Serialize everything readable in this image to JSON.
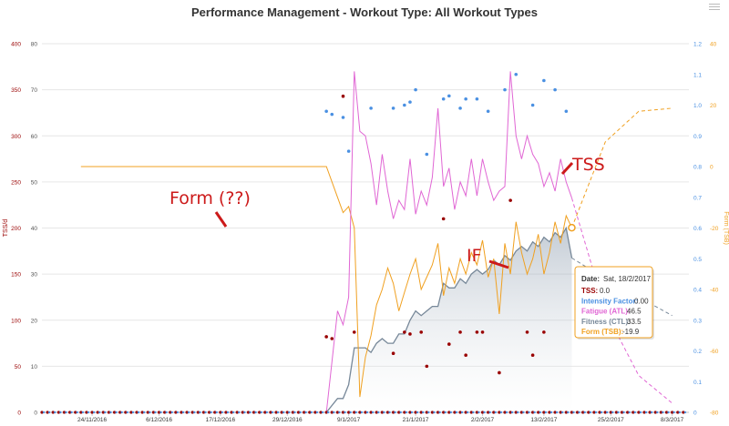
{
  "window": {
    "title": "Performance Management - Workout Type: All Workout Types"
  },
  "colors": {
    "tss": "#990000",
    "if": "#4a90e2",
    "atl": "#e066d4",
    "ctl": "#778899",
    "tsb": "#f0a020",
    "annotation": "#cc1a1a",
    "grid": "#e6e6e6"
  },
  "icons": {
    "menu": "hamburger-menu-icon"
  },
  "chart_data": {
    "type": "line",
    "title": "Performance Management - Workout Type: All Workout Types",
    "x_dates": [
      "2016-11-24",
      "2016-12-06",
      "2016-12-17",
      "2016-12-29",
      "2017-01-09",
      "2017-01-21",
      "2017-02-02",
      "2017-02-13",
      "2017-02-25",
      "2017-03-08"
    ],
    "x_tick_labels": [
      "24/11/2016",
      "6/12/2016",
      "17/12/2016",
      "29/12/2016",
      "9/1/2017",
      "21/1/2017",
      "2/2/2017",
      "13/2/2017",
      "25/2/2017",
      "8/3/2017"
    ],
    "axes": {
      "tss": {
        "label": "TSS/d",
        "ylim": [
          0,
          400
        ],
        "ticks": [
          "0",
          "50",
          "100",
          "150",
          "200",
          "250",
          "300",
          "350",
          "400"
        ]
      },
      "atl_ctl": {
        "label": "",
        "ylim": [
          0,
          80
        ],
        "ticks": [
          "0",
          "10",
          "20",
          "30",
          "40",
          "50",
          "60",
          "70",
          "80"
        ]
      },
      "if": {
        "label": "",
        "ylim": [
          0,
          1.2
        ],
        "ticks": [
          "0",
          "0.1",
          "0.2",
          "0.3",
          "0.4",
          "0.5",
          "0.6",
          "0.7",
          "0.8",
          "0.9",
          "1.0",
          "1.1",
          "1.2"
        ]
      },
      "tsb": {
        "label": "Form (TSB)",
        "ylim": [
          -80,
          40
        ],
        "ticks": [
          "-80",
          "-60",
          "-40",
          "-20",
          "0",
          "20",
          "40"
        ]
      }
    },
    "grid": true,
    "series": [
      {
        "name": "Fitness (CTL)",
        "axis": "atl_ctl",
        "x": [
          "2017-01-05",
          "2017-01-07",
          "2017-01-08",
          "2017-01-09",
          "2017-01-10",
          "2017-01-11",
          "2017-01-12",
          "2017-01-13",
          "2017-01-14",
          "2017-01-15",
          "2017-01-16",
          "2017-01-17",
          "2017-01-18",
          "2017-01-19",
          "2017-01-20",
          "2017-01-21",
          "2017-01-22",
          "2017-01-23",
          "2017-01-24",
          "2017-01-25",
          "2017-01-26",
          "2017-01-27",
          "2017-01-28",
          "2017-01-29",
          "2017-01-30",
          "2017-01-31",
          "2017-02-01",
          "2017-02-02",
          "2017-02-03",
          "2017-02-04",
          "2017-02-05",
          "2017-02-06",
          "2017-02-07",
          "2017-02-08",
          "2017-02-09",
          "2017-02-10",
          "2017-02-11",
          "2017-02-12",
          "2017-02-13",
          "2017-02-14",
          "2017-02-15",
          "2017-02-16",
          "2017-02-17",
          "2017-02-18"
        ],
        "values": [
          0,
          3,
          3,
          6,
          14,
          14,
          14,
          13,
          15,
          16,
          15,
          15,
          17,
          17,
          20,
          22,
          21,
          22,
          23,
          23,
          28,
          27,
          27,
          29,
          28,
          30,
          31,
          30,
          31,
          33,
          32,
          34,
          33,
          35,
          36,
          35,
          37,
          36,
          38,
          37,
          39,
          38,
          40,
          33.5
        ]
      },
      {
        "name": "Fatigue (ATL)",
        "axis": "atl_ctl",
        "x": [
          "2017-01-05",
          "2017-01-07",
          "2017-01-08",
          "2017-01-09",
          "2017-01-10",
          "2017-01-11",
          "2017-01-12",
          "2017-01-13",
          "2017-01-14",
          "2017-01-15",
          "2017-01-16",
          "2017-01-17",
          "2017-01-18",
          "2017-01-19",
          "2017-01-20",
          "2017-01-21",
          "2017-01-22",
          "2017-01-23",
          "2017-01-24",
          "2017-01-25",
          "2017-01-26",
          "2017-01-27",
          "2017-01-28",
          "2017-01-29",
          "2017-01-30",
          "2017-01-31",
          "2017-02-01",
          "2017-02-02",
          "2017-02-03",
          "2017-02-04",
          "2017-02-05",
          "2017-02-06",
          "2017-02-07",
          "2017-02-08",
          "2017-02-09",
          "2017-02-10",
          "2017-02-11",
          "2017-02-12",
          "2017-02-13",
          "2017-02-14",
          "2017-02-15",
          "2017-02-16",
          "2017-02-17",
          "2017-02-18"
        ],
        "values": [
          0,
          22,
          19,
          25,
          74,
          61,
          60,
          54,
          45,
          56,
          48,
          42,
          46,
          44,
          55,
          43,
          48,
          45,
          51,
          66,
          49,
          53,
          44,
          50,
          47,
          55,
          47,
          55,
          50,
          46,
          48,
          49,
          74,
          60,
          55,
          60,
          56,
          54,
          49,
          52,
          48,
          55,
          50,
          46.5
        ]
      },
      {
        "name": "Form (TSB)",
        "axis": "tsb",
        "x": [
          "2016-11-22",
          "2017-01-05",
          "2017-01-07",
          "2017-01-08",
          "2017-01-09",
          "2017-01-10",
          "2017-01-11",
          "2017-01-12",
          "2017-01-13",
          "2017-01-14",
          "2017-01-15",
          "2017-01-16",
          "2017-01-17",
          "2017-01-18",
          "2017-01-19",
          "2017-01-20",
          "2017-01-21",
          "2017-01-22",
          "2017-01-23",
          "2017-01-24",
          "2017-01-25",
          "2017-01-26",
          "2017-01-27",
          "2017-01-28",
          "2017-01-29",
          "2017-01-30",
          "2017-01-31",
          "2017-02-01",
          "2017-02-02",
          "2017-02-03",
          "2017-02-04",
          "2017-02-05",
          "2017-02-06",
          "2017-02-07",
          "2017-02-08",
          "2017-02-09",
          "2017-02-10",
          "2017-02-11",
          "2017-02-12",
          "2017-02-13",
          "2017-02-14",
          "2017-02-15",
          "2017-02-16",
          "2017-02-17",
          "2017-02-18"
        ],
        "values": [
          0,
          0,
          -10,
          -15,
          -13,
          -20,
          -75,
          -62,
          -55,
          -45,
          -40,
          -33,
          -38,
          -47,
          -41,
          -35,
          -30,
          -40,
          -36,
          -32,
          -25,
          -42,
          -33,
          -38,
          -30,
          -35,
          -28,
          -32,
          -24,
          -36,
          -30,
          -48,
          -25,
          -35,
          -18,
          -28,
          -35,
          -30,
          -22,
          -35,
          -28,
          -18,
          -25,
          -16,
          -19.9
        ]
      },
      {
        "name": "TSS",
        "axis": "tss",
        "x": [
          "2017-01-05",
          "2017-01-06",
          "2017-01-08",
          "2017-01-10",
          "2017-01-17",
          "2017-01-19",
          "2017-01-20",
          "2017-01-22",
          "2017-01-23",
          "2017-01-26",
          "2017-01-27",
          "2017-01-29",
          "2017-01-30",
          "2017-02-01",
          "2017-02-02",
          "2017-02-05",
          "2017-02-07",
          "2017-02-10",
          "2017-02-11",
          "2017-02-13"
        ],
        "values": [
          82,
          80,
          343,
          87,
          64,
          87,
          85,
          87,
          50,
          210,
          74,
          87,
          62,
          87,
          87,
          43,
          230,
          87,
          62,
          87
        ]
      },
      {
        "name": "Intensity Factor",
        "axis": "if",
        "x": [
          "2017-01-05",
          "2017-01-06",
          "2017-01-08",
          "2017-01-09",
          "2017-01-13",
          "2017-01-17",
          "2017-01-19",
          "2017-01-20",
          "2017-01-21",
          "2017-01-23",
          "2017-01-26",
          "2017-01-27",
          "2017-01-29",
          "2017-01-30",
          "2017-02-01",
          "2017-02-03",
          "2017-02-06",
          "2017-02-08",
          "2017-02-11",
          "2017-02-13",
          "2017-02-15",
          "2017-02-17"
        ],
        "values": [
          0.98,
          0.97,
          0.96,
          0.85,
          0.99,
          0.99,
          1.0,
          1.01,
          1.05,
          0.84,
          1.02,
          1.03,
          0.99,
          1.02,
          1.02,
          0.98,
          1.05,
          1.1,
          1.0,
          1.08,
          1.05,
          0.98
        ]
      }
    ],
    "projection": {
      "x": [
        "2017-02-18",
        "2017-02-24",
        "2017-03-02",
        "2017-03-08"
      ],
      "fatigue": [
        46.5,
        22,
        8,
        2
      ],
      "fitness": [
        33.5,
        29,
        25,
        21
      ],
      "form": [
        -19.9,
        8,
        18,
        19
      ]
    },
    "annotations": {
      "form_note": "Form (??)",
      "if_note": "IF",
      "tss_note": "TSS"
    },
    "tooltip": {
      "date_label": "Date:",
      "date_value": "Sat, 18/2/2017",
      "rows": [
        {
          "label": "TSS:",
          "value": "0.0",
          "color": "#990000"
        },
        {
          "label": "Intensity Factor:",
          "value": "0.00",
          "color": "#4a90e2"
        },
        {
          "label": "Fatigue (ATL):",
          "value": "46.5",
          "color": "#e066d4"
        },
        {
          "label": "Fitness (CTL):",
          "value": "33.5",
          "color": "#778899"
        },
        {
          "label": "Form (TSB):",
          "value": "-19.9",
          "color": "#f0a020"
        }
      ]
    }
  }
}
